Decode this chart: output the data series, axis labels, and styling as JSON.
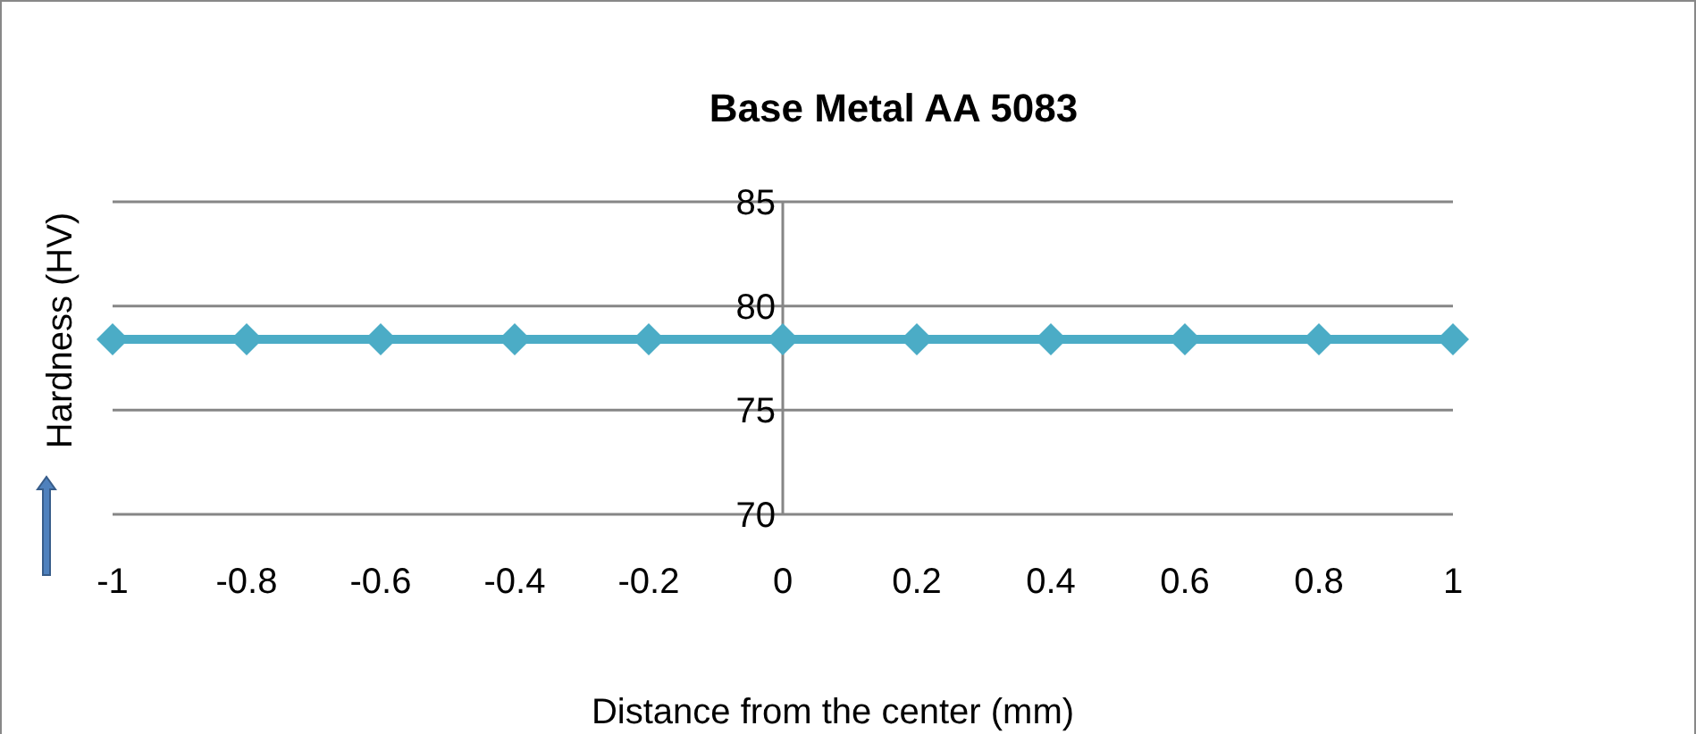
{
  "chart_data": {
    "type": "line",
    "title": "Base Metal AA 5083",
    "xlabel": "Distance from the center (mm)",
    "ylabel": "Hardness  (HV)",
    "x": [
      -1,
      -0.8,
      -0.6,
      -0.4,
      -0.2,
      0,
      0.2,
      0.4,
      0.6,
      0.8,
      1
    ],
    "series": [
      {
        "color": "#4bacc6",
        "values": [
          78.4,
          78.4,
          78.4,
          78.4,
          78.4,
          78.4,
          78.4,
          78.4,
          78.4,
          78.4,
          78.4
        ]
      }
    ],
    "xlim": [
      -1,
      1
    ],
    "xticks": [
      -1,
      -0.8,
      -0.6,
      -0.4,
      -0.2,
      0,
      0.2,
      0.4,
      0.6,
      0.8,
      1
    ],
    "ylim": [
      70,
      85
    ],
    "yticks": [
      70,
      75,
      80,
      85
    ],
    "grid": "y",
    "marker": "diamond",
    "line_style": "solid"
  }
}
